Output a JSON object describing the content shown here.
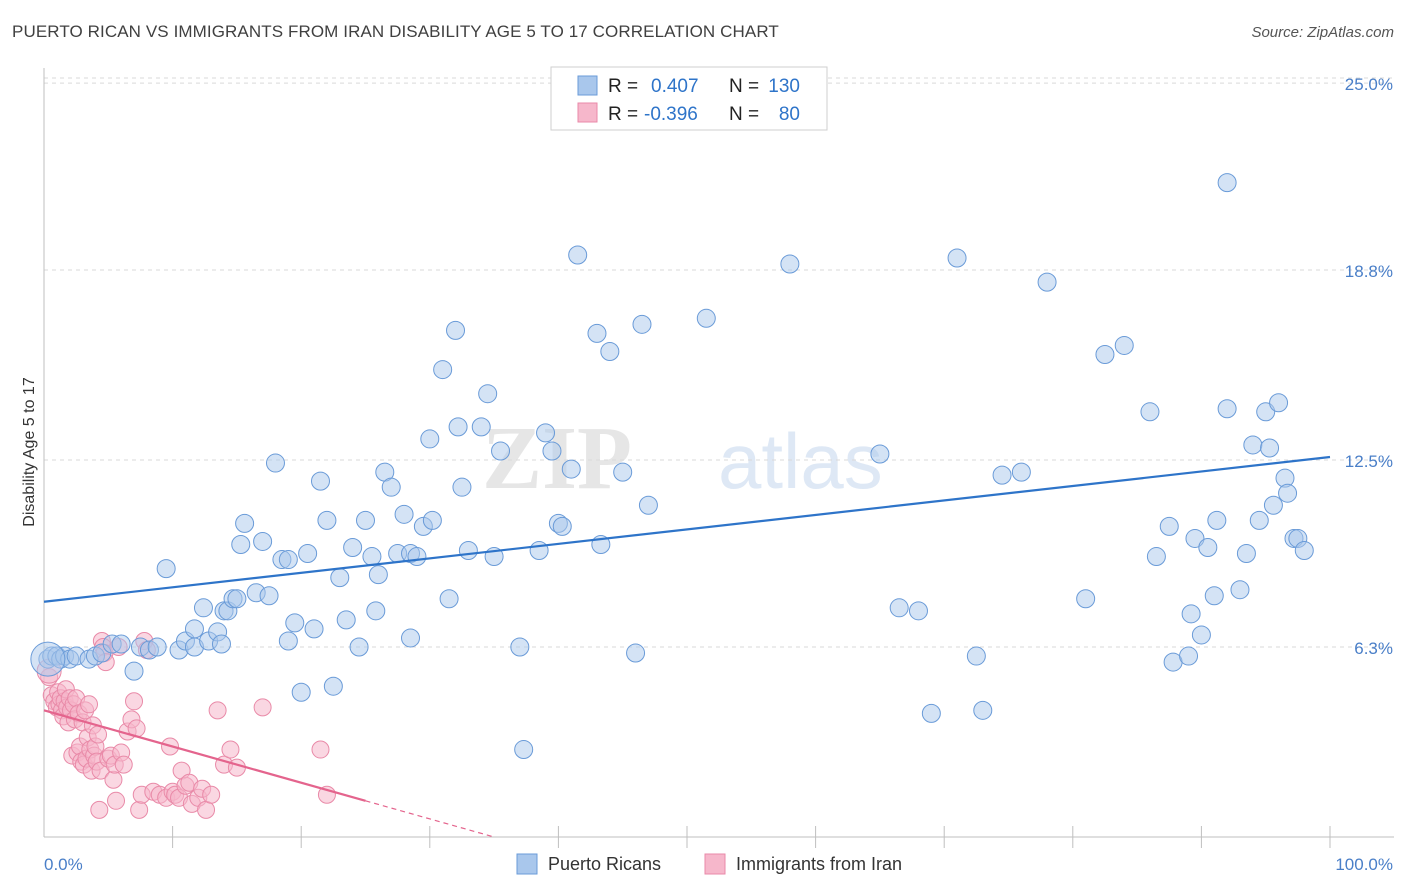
{
  "header": {
    "title": "PUERTO RICAN VS IMMIGRANTS FROM IRAN DISABILITY AGE 5 TO 17 CORRELATION CHART",
    "source": "Source: ZipAtlas.com"
  },
  "watermark": {
    "zip": "ZIP",
    "atlas": "atlas"
  },
  "colors": {
    "blue_fill": "#a9c7ec",
    "blue_stroke": "#6a9bd8",
    "blue_line": "#2e74c9",
    "pink_fill": "#f6b7cb",
    "pink_stroke": "#e98aa8",
    "pink_line": "#e4648d",
    "grid": "#d9d9d9",
    "axis_text": "#4a7fc8",
    "label_text": "#333333"
  },
  "legend_box": {
    "rows": [
      {
        "series": "Puerto Ricans",
        "r_label": "R =",
        "r_value": "0.407",
        "n_label": "N =",
        "n_value": "130"
      },
      {
        "series": "Immigrants from Iran",
        "r_label": "R =",
        "r_value": "-0.396",
        "n_label": "N =",
        "n_value": "80"
      }
    ]
  },
  "chart_data": {
    "type": "scatter",
    "title": "PUERTO RICAN VS IMMIGRANTS FROM IRAN DISABILITY AGE 5 TO 17 CORRELATION CHART",
    "xlabel": "",
    "ylabel": "Disability Age 5 to 17",
    "xlim": [
      0,
      100
    ],
    "ylim": [
      0,
      25.5
    ],
    "x_tick_labels": [
      "0.0%",
      "100.0%"
    ],
    "y_ticks": [
      6.3,
      12.5,
      18.8,
      25.0
    ],
    "y_tick_labels": [
      "6.3%",
      "12.5%",
      "18.8%",
      "25.0%"
    ],
    "legend": [
      "Puerto Ricans",
      "Immigrants from Iran"
    ],
    "series": [
      {
        "name": "Puerto Ricans",
        "color": "blue",
        "trend": {
          "x": [
            0,
            100
          ],
          "y": [
            7.8,
            12.6
          ]
        },
        "points": [
          [
            0.3,
            5.9
          ],
          [
            0.6,
            6.0
          ],
          [
            1.0,
            6.0
          ],
          [
            1.3,
            5.9
          ],
          [
            1.6,
            6.0
          ],
          [
            2.0,
            5.9
          ],
          [
            2.5,
            6.0
          ],
          [
            3.5,
            5.9
          ],
          [
            4.0,
            6.0
          ],
          [
            4.5,
            6.1
          ],
          [
            5.3,
            6.4
          ],
          [
            6.0,
            6.4
          ],
          [
            7.0,
            5.5
          ],
          [
            7.5,
            6.3
          ],
          [
            8.2,
            6.2
          ],
          [
            8.8,
            6.3
          ],
          [
            9.5,
            8.9
          ],
          [
            10.5,
            6.2
          ],
          [
            11.0,
            6.5
          ],
          [
            11.7,
            6.3
          ],
          [
            11.7,
            6.9
          ],
          [
            12.4,
            7.6
          ],
          [
            12.8,
            6.5
          ],
          [
            13.5,
            6.8
          ],
          [
            13.8,
            6.4
          ],
          [
            14.0,
            7.5
          ],
          [
            14.3,
            7.5
          ],
          [
            14.7,
            7.9
          ],
          [
            15.0,
            7.9
          ],
          [
            15.3,
            9.7
          ],
          [
            15.6,
            10.4
          ],
          [
            16.5,
            8.1
          ],
          [
            17.0,
            9.8
          ],
          [
            17.5,
            8.0
          ],
          [
            18.0,
            12.4
          ],
          [
            18.5,
            9.2
          ],
          [
            19.0,
            9.2
          ],
          [
            19.0,
            6.5
          ],
          [
            19.5,
            7.1
          ],
          [
            20.0,
            4.8
          ],
          [
            20.5,
            9.4
          ],
          [
            21.0,
            6.9
          ],
          [
            21.5,
            11.8
          ],
          [
            22.0,
            10.5
          ],
          [
            22.5,
            5.0
          ],
          [
            23.0,
            8.6
          ],
          [
            23.5,
            7.2
          ],
          [
            24.0,
            9.6
          ],
          [
            24.5,
            6.3
          ],
          [
            25.0,
            10.5
          ],
          [
            25.5,
            9.3
          ],
          [
            25.8,
            7.5
          ],
          [
            26.0,
            8.7
          ],
          [
            26.5,
            12.1
          ],
          [
            27.0,
            11.6
          ],
          [
            27.5,
            9.4
          ],
          [
            28.0,
            10.7
          ],
          [
            28.5,
            6.6
          ],
          [
            28.5,
            9.4
          ],
          [
            29.0,
            9.3
          ],
          [
            29.5,
            10.3
          ],
          [
            30.0,
            13.2
          ],
          [
            30.2,
            10.5
          ],
          [
            31.0,
            15.5
          ],
          [
            31.5,
            7.9
          ],
          [
            32.0,
            16.8
          ],
          [
            32.2,
            13.6
          ],
          [
            32.5,
            11.6
          ],
          [
            33.0,
            9.5
          ],
          [
            34.0,
            13.6
          ],
          [
            34.5,
            14.7
          ],
          [
            35.0,
            9.3
          ],
          [
            35.5,
            12.8
          ],
          [
            37.0,
            6.3
          ],
          [
            37.3,
            2.9
          ],
          [
            38.5,
            9.5
          ],
          [
            39.0,
            13.4
          ],
          [
            39.5,
            12.8
          ],
          [
            40.0,
            10.4
          ],
          [
            40.3,
            10.3
          ],
          [
            41.0,
            12.2
          ],
          [
            41.5,
            19.3
          ],
          [
            43.0,
            16.7
          ],
          [
            43.3,
            9.7
          ],
          [
            44.0,
            16.1
          ],
          [
            45.0,
            12.1
          ],
          [
            46.0,
            6.1
          ],
          [
            46.5,
            17.0
          ],
          [
            47.0,
            11.0
          ],
          [
            51.5,
            17.2
          ],
          [
            58.0,
            19.0
          ],
          [
            65.0,
            12.7
          ],
          [
            66.5,
            7.6
          ],
          [
            68.0,
            7.5
          ],
          [
            69.0,
            4.1
          ],
          [
            71.0,
            19.2
          ],
          [
            72.5,
            6.0
          ],
          [
            73.0,
            4.2
          ],
          [
            74.5,
            12.0
          ],
          [
            76.0,
            12.1
          ],
          [
            78.0,
            18.4
          ],
          [
            81.0,
            7.9
          ],
          [
            82.5,
            16.0
          ],
          [
            84.0,
            16.3
          ],
          [
            86.0,
            14.1
          ],
          [
            86.5,
            9.3
          ],
          [
            87.5,
            10.3
          ],
          [
            87.8,
            5.8
          ],
          [
            89.0,
            6.0
          ],
          [
            89.2,
            7.4
          ],
          [
            89.5,
            9.9
          ],
          [
            90.0,
            6.7
          ],
          [
            90.5,
            9.6
          ],
          [
            91.0,
            8.0
          ],
          [
            91.2,
            10.5
          ],
          [
            92.0,
            21.7
          ],
          [
            92.0,
            14.2
          ],
          [
            93.0,
            8.2
          ],
          [
            93.5,
            9.4
          ],
          [
            94.0,
            13.0
          ],
          [
            94.5,
            10.5
          ],
          [
            95.0,
            14.1
          ],
          [
            95.3,
            12.9
          ],
          [
            95.6,
            11.0
          ],
          [
            96.0,
            14.4
          ],
          [
            96.5,
            11.9
          ],
          [
            96.7,
            11.4
          ],
          [
            97.2,
            9.9
          ],
          [
            97.5,
            9.9
          ],
          [
            98.0,
            9.5
          ]
        ]
      },
      {
        "name": "Immigrants from Iran",
        "color": "pink",
        "trend": {
          "x": [
            0,
            25,
            35
          ],
          "y": [
            4.2,
            1.2,
            0.0
          ],
          "solid_until_x": 25
        },
        "points": [
          [
            0.4,
            5.3
          ],
          [
            0.6,
            4.7
          ],
          [
            0.8,
            4.5
          ],
          [
            1.0,
            4.3
          ],
          [
            1.1,
            4.8
          ],
          [
            1.2,
            4.4
          ],
          [
            1.3,
            4.6
          ],
          [
            1.4,
            4.2
          ],
          [
            1.5,
            4.0
          ],
          [
            1.6,
            4.5
          ],
          [
            1.7,
            4.9
          ],
          [
            1.8,
            4.3
          ],
          [
            1.9,
            3.8
          ],
          [
            2.0,
            4.6
          ],
          [
            2.1,
            4.2
          ],
          [
            2.2,
            2.7
          ],
          [
            2.3,
            4.4
          ],
          [
            2.4,
            3.9
          ],
          [
            2.5,
            4.6
          ],
          [
            2.6,
            2.8
          ],
          [
            2.7,
            4.1
          ],
          [
            2.8,
            3.0
          ],
          [
            2.9,
            2.5
          ],
          [
            3.0,
            3.8
          ],
          [
            3.1,
            2.4
          ],
          [
            3.2,
            4.2
          ],
          [
            3.3,
            2.6
          ],
          [
            3.4,
            3.3
          ],
          [
            3.5,
            4.4
          ],
          [
            3.6,
            2.9
          ],
          [
            3.7,
            2.2
          ],
          [
            3.8,
            3.7
          ],
          [
            3.9,
            2.7
          ],
          [
            4.0,
            3.0
          ],
          [
            4.1,
            2.5
          ],
          [
            4.2,
            3.4
          ],
          [
            4.3,
            0.9
          ],
          [
            4.4,
            2.2
          ],
          [
            4.5,
            6.5
          ],
          [
            4.6,
            6.3
          ],
          [
            4.7,
            6.1
          ],
          [
            4.8,
            5.8
          ],
          [
            5.0,
            2.6
          ],
          [
            5.2,
            2.7
          ],
          [
            5.4,
            1.9
          ],
          [
            5.5,
            2.4
          ],
          [
            5.6,
            1.2
          ],
          [
            5.8,
            6.3
          ],
          [
            6.0,
            2.8
          ],
          [
            6.2,
            2.4
          ],
          [
            6.5,
            3.5
          ],
          [
            6.8,
            3.9
          ],
          [
            7.0,
            4.5
          ],
          [
            7.2,
            3.6
          ],
          [
            7.4,
            0.9
          ],
          [
            7.6,
            1.4
          ],
          [
            7.8,
            6.5
          ],
          [
            8.0,
            6.2
          ],
          [
            8.5,
            1.5
          ],
          [
            9.0,
            1.4
          ],
          [
            9.5,
            1.3
          ],
          [
            9.8,
            3.0
          ],
          [
            10.0,
            1.5
          ],
          [
            10.2,
            1.4
          ],
          [
            10.5,
            1.3
          ],
          [
            10.7,
            2.2
          ],
          [
            11.0,
            1.7
          ],
          [
            11.3,
            1.8
          ],
          [
            11.5,
            1.1
          ],
          [
            12.0,
            1.3
          ],
          [
            12.3,
            1.6
          ],
          [
            12.6,
            0.9
          ],
          [
            13.0,
            1.4
          ],
          [
            13.5,
            4.2
          ],
          [
            14.0,
            2.4
          ],
          [
            14.5,
            2.9
          ],
          [
            15.0,
            2.3
          ],
          [
            17.0,
            4.3
          ],
          [
            21.5,
            2.9
          ],
          [
            22.0,
            1.4
          ]
        ]
      }
    ]
  }
}
